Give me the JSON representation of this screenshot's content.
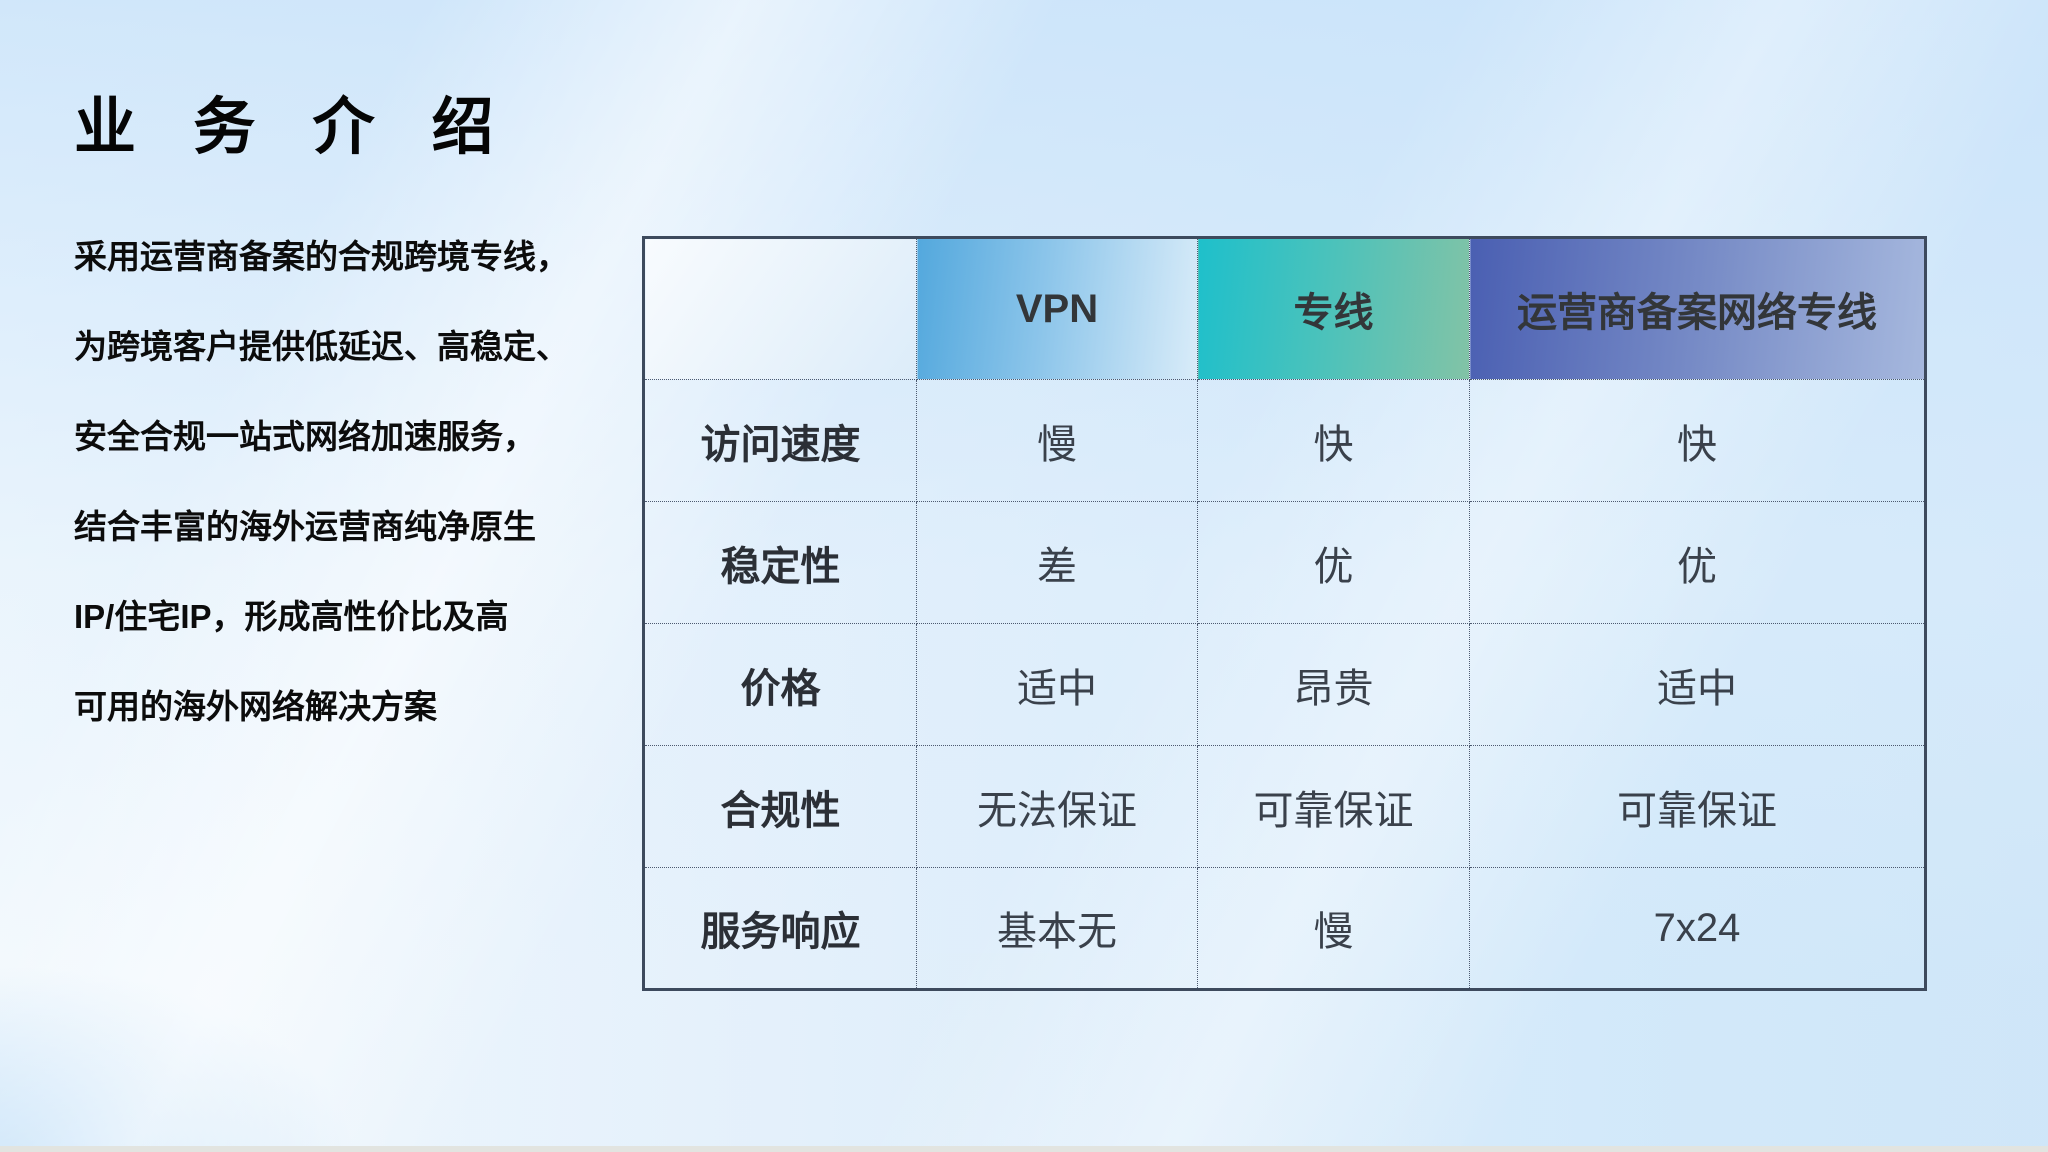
{
  "slide": {
    "title": "业 务 介 绍",
    "description_lines": [
      "采用运营商备案的合规跨境专线，",
      "为跨境客户提供低延迟、高稳定、",
      "安全合规一站式网络加速服务，",
      "结合丰富的海外运营商纯净原生",
      "IP/住宅IP，形成高性价比及高",
      "可用的海外网络解决方案"
    ]
  },
  "table": {
    "columns": [
      "",
      "VPN",
      "专线",
      "运营商备案网络专线"
    ],
    "rows": [
      {
        "label": "访问速度",
        "values": [
          "慢",
          "快",
          "快"
        ]
      },
      {
        "label": "稳定性",
        "values": [
          "差",
          "优",
          "优"
        ]
      },
      {
        "label": "价格",
        "values": [
          "适中",
          "昂贵",
          "适中"
        ]
      },
      {
        "label": "合规性",
        "values": [
          "无法保证",
          "可靠保证",
          "可靠保证"
        ]
      },
      {
        "label": "服务响应",
        "values": [
          "基本无",
          "慢",
          "7x24"
        ]
      }
    ],
    "header_gradient_colors": {
      "vpn": [
        "#53a8dd",
        "#d9ecf9"
      ],
      "dedicated_line": [
        "#1ec0cb",
        "#82c3a6"
      ],
      "carrier_line": [
        "#4a5fb2",
        "#a6b8de"
      ]
    },
    "border_color": "#3d4a5d",
    "text_color": "#3a414b"
  },
  "background": {
    "base_colors": [
      "#f1f8fd",
      "#cbe4f8"
    ],
    "bottom_edge_color": "#e2e4e0"
  }
}
